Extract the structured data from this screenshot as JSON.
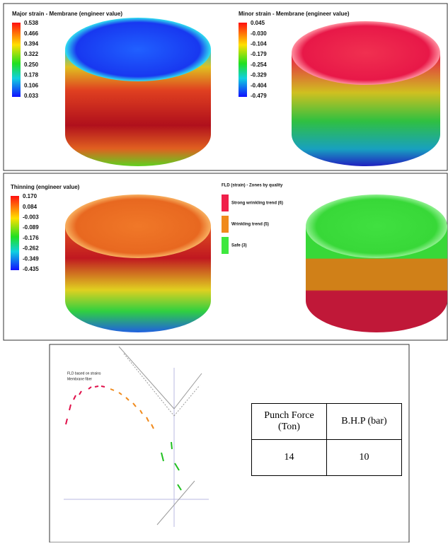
{
  "panels": [
    {
      "title": "Major strain - Membrane (engineer value)",
      "legend": [
        "0.538",
        "0.466",
        "0.394",
        "0.322",
        "0.250",
        "0.178",
        "0.106",
        "0.033"
      ]
    },
    {
      "title": "Minor strain - Membrane (engineer value)",
      "legend": [
        "0.045",
        "-0.030",
        "-0.104",
        "-0.179",
        "-0.254",
        "-0.329",
        "-0.404",
        "-0.479"
      ]
    },
    {
      "title": "Thinning (engineer value)",
      "legend": [
        "0.170",
        "0.084",
        "-0.003",
        "-0.089",
        "-0.176",
        "-0.262",
        "-0.349",
        "-0.435"
      ]
    },
    {
      "title": "FLD (strain) - Zones by quality",
      "zones": [
        {
          "label": "Strong wrinkling trend (6)",
          "color": "#f0204a"
        },
        {
          "label": "Wrinkling trend (5)",
          "color": "#f08a1c"
        },
        {
          "label": "Safe (3)",
          "color": "#3ee83e"
        }
      ]
    }
  ],
  "fld": {
    "legend": [
      "FLD based on strains",
      "Membrane fiber"
    ]
  },
  "table": {
    "header": [
      "Punch Force (Ton)",
      "B.H.P (bar)"
    ],
    "rows": [
      [
        "14",
        "10"
      ]
    ]
  }
}
